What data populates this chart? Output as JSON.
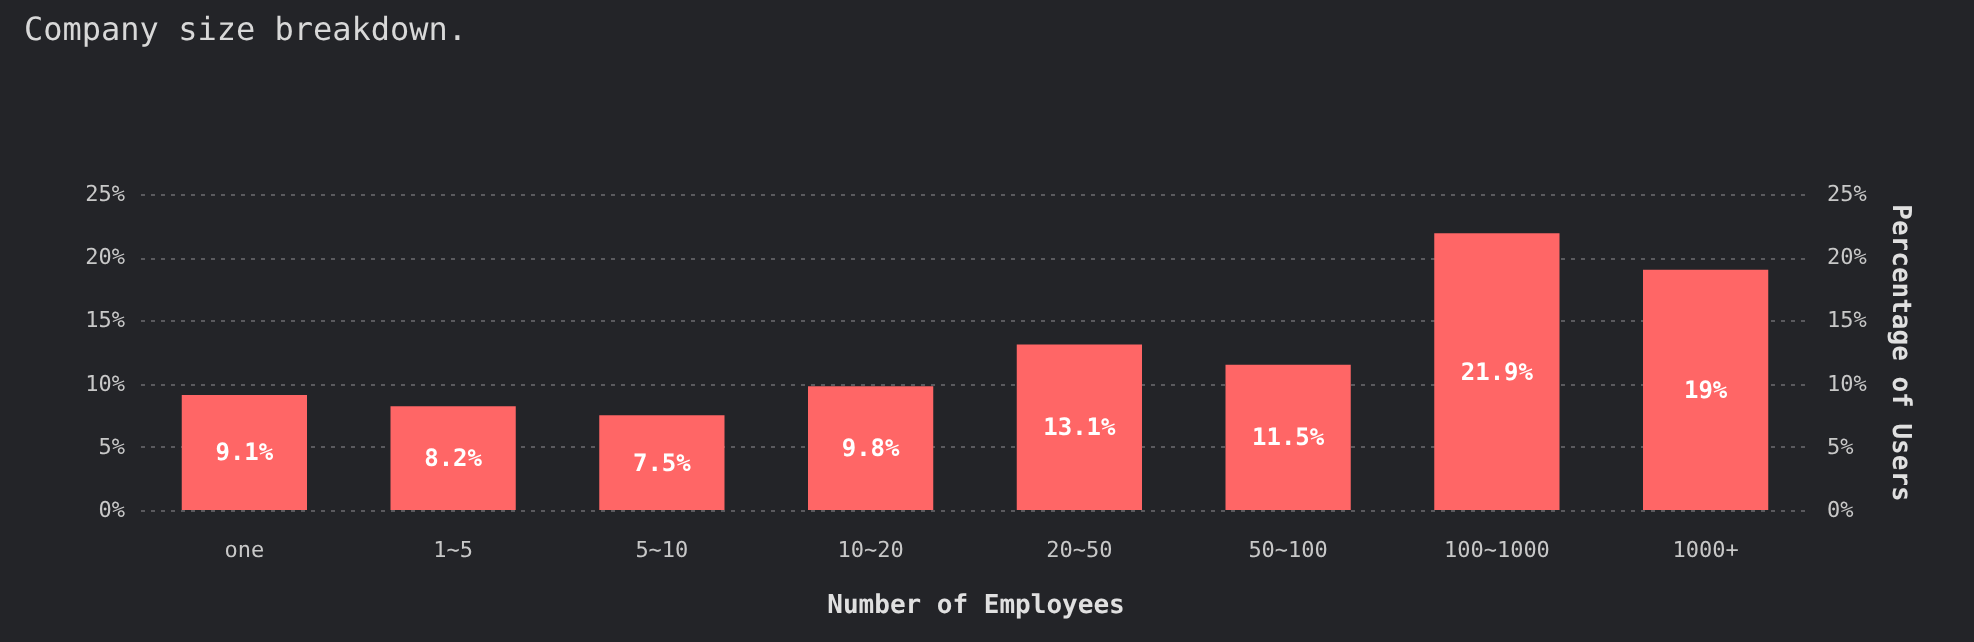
{
  "chart_data": {
    "type": "bar",
    "title": "Company size breakdown.",
    "xlabel": "Number of Employees",
    "y2label": "Percentage of Users",
    "categories": [
      "one",
      "1~5",
      "5~10",
      "10~20",
      "20~50",
      "50~100",
      "100~1000",
      "1000+"
    ],
    "values": [
      9.1,
      8.2,
      7.5,
      9.8,
      13.1,
      11.5,
      21.9,
      19
    ],
    "value_labels": [
      "9.1%",
      "8.2%",
      "7.5%",
      "9.8%",
      "13.1%",
      "11.5%",
      "21.9%",
      "19%"
    ],
    "color": "#ff6666",
    "ylim": [
      0,
      25
    ],
    "yticks": [
      {
        "value": 0,
        "label": "0%"
      },
      {
        "value": 5,
        "label": "5%"
      },
      {
        "value": 10,
        "label": "10%"
      },
      {
        "value": 15,
        "label": "15%"
      },
      {
        "value": 20,
        "label": "20%"
      },
      {
        "value": 25,
        "label": "25%"
      }
    ],
    "y2lim": [
      0,
      25
    ],
    "y2ticks": [
      {
        "value": 0,
        "label": "0%"
      },
      {
        "value": 5,
        "label": "5%"
      },
      {
        "value": 10,
        "label": "10%"
      },
      {
        "value": 15,
        "label": "15%"
      },
      {
        "value": 20,
        "label": "20%"
      },
      {
        "value": 25,
        "label": "25%"
      }
    ],
    "grid": "y"
  }
}
